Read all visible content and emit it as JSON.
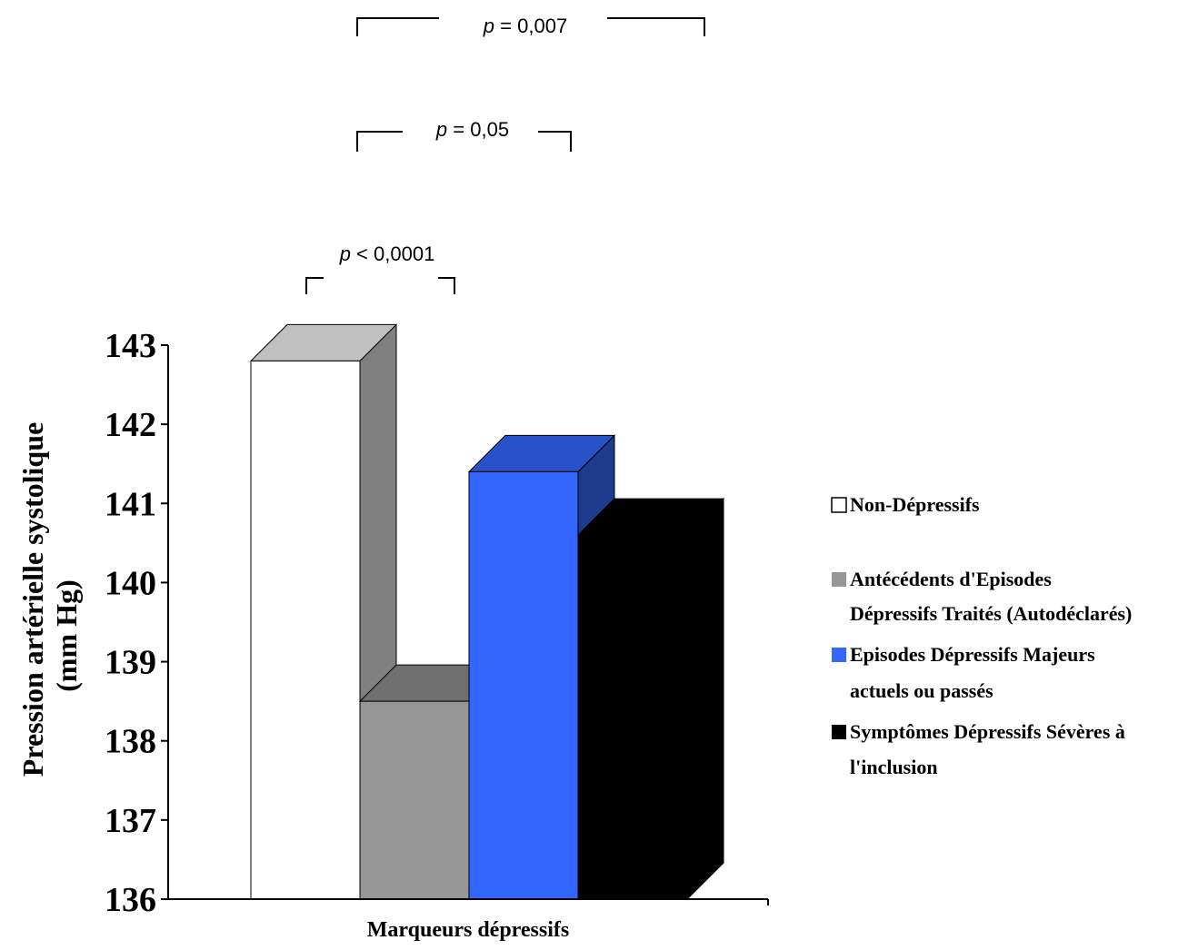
{
  "chart_data": {
    "type": "bar",
    "style": "3d-clustered-bar",
    "title": "",
    "xlabel": "Marqueurs dépressifs",
    "ylabel_line1": "Pression artérielle systolique",
    "ylabel_line2": "(mm Hg)",
    "ylim": [
      136,
      143
    ],
    "yticks": [
      "143",
      "142",
      "141",
      "140",
      "139",
      "138",
      "137",
      "136"
    ],
    "grid": false,
    "legend_position": "right",
    "series": [
      {
        "name": "Non-Dépressifs",
        "value": 142.8,
        "color": "#ffffff",
        "top_color": "#c0c0c0",
        "side_color": "#808080"
      },
      {
        "name": "Antécédents d'Episodes Dépressifs Traités (Autodéclarés)",
        "value": 138.5,
        "color": "#969696",
        "top_color": "#6f6f6f",
        "side_color": "#6a6a6a"
      },
      {
        "name": "Episodes Dépressifs Majeurs actuels ou passés",
        "value": 141.4,
        "color": "#3366ff",
        "top_color": "#2850c8",
        "side_color": "#1e3a8a"
      },
      {
        "name": "Symptômes Dépressifs Sévères à l'inclusion",
        "value": 140.6,
        "color": "#000000",
        "top_color": "#000000",
        "side_color": "#000000"
      }
    ],
    "legend": [
      {
        "line1": "Non-Dépressifs",
        "line2": ""
      },
      {
        "line1": "Antécédents d'Episodes",
        "line2": "Dépressifs Traités (Autodéclarés)"
      },
      {
        "line1": "Episodes Dépressifs Majeurs",
        "line2": "actuels ou passés"
      },
      {
        "line1": "Symptômes Dépressifs Sévères à",
        "line2": "l'inclusion"
      }
    ],
    "annotations": [
      {
        "p_symbol": "p",
        "text": " < 0,0001"
      },
      {
        "p_symbol": "p",
        "text": " = 0,05"
      },
      {
        "p_symbol": "p",
        "text": " = 0,007"
      }
    ]
  }
}
